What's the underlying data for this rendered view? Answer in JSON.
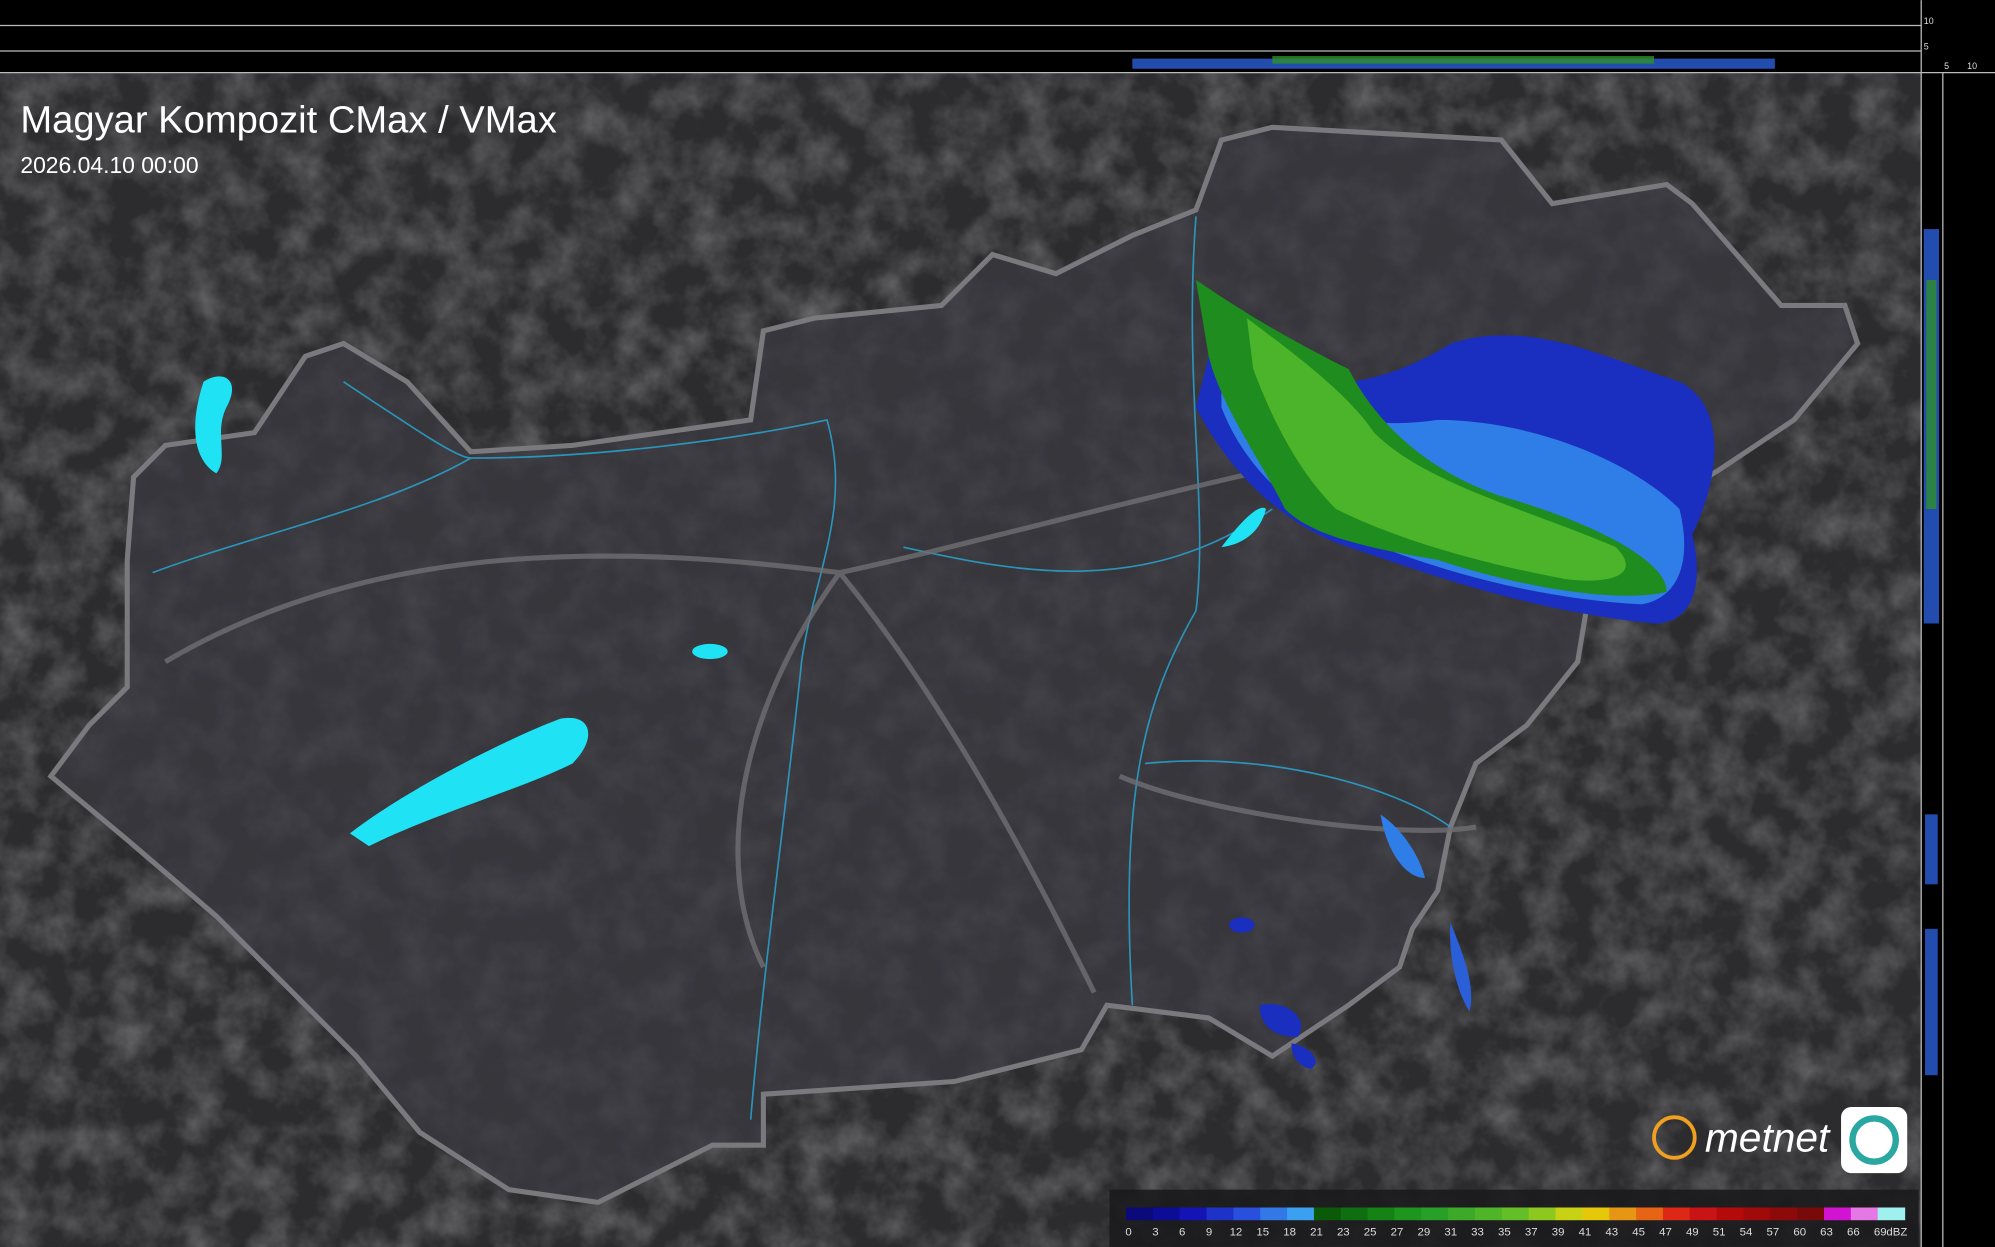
{
  "header": {
    "title": "Magyar Kompozit CMax / VMax",
    "timestamp": "2026.04.10 00:00"
  },
  "legend": {
    "unit": "dBZ",
    "items": [
      {
        "value": 0,
        "color": "#0a0a7a"
      },
      {
        "value": 3,
        "color": "#0c0c96"
      },
      {
        "value": 6,
        "color": "#1414b4"
      },
      {
        "value": 9,
        "color": "#1e32c8"
      },
      {
        "value": 12,
        "color": "#2850dc"
      },
      {
        "value": 15,
        "color": "#3278e6"
      },
      {
        "value": 18,
        "color": "#3ca0f0"
      },
      {
        "value": 21,
        "color": "#0a5a0a"
      },
      {
        "value": 23,
        "color": "#0f6e0f"
      },
      {
        "value": 25,
        "color": "#148214"
      },
      {
        "value": 27,
        "color": "#1e961e"
      },
      {
        "value": 29,
        "color": "#28a028"
      },
      {
        "value": 31,
        "color": "#3caa28"
      },
      {
        "value": 33,
        "color": "#50b428"
      },
      {
        "value": 35,
        "color": "#64be28"
      },
      {
        "value": 37,
        "color": "#8cc81e"
      },
      {
        "value": 39,
        "color": "#c8d214"
      },
      {
        "value": 41,
        "color": "#e6c80a"
      },
      {
        "value": 43,
        "color": "#e69614"
      },
      {
        "value": 45,
        "color": "#e66414"
      },
      {
        "value": 47,
        "color": "#dc2814"
      },
      {
        "value": 49,
        "color": "#c81414"
      },
      {
        "value": 51,
        "color": "#b40a0a"
      },
      {
        "value": 54,
        "color": "#a00a0a"
      },
      {
        "value": 57,
        "color": "#8c0a0a"
      },
      {
        "value": 60,
        "color": "#780a0a"
      },
      {
        "value": 63,
        "color": "#d214d2"
      },
      {
        "value": 66,
        "color": "#e678e6"
      },
      {
        "value": 69,
        "color": "#a0f0f0"
      }
    ]
  },
  "profile_axes": {
    "top": [
      10,
      5
    ],
    "bottom": [
      5,
      10
    ]
  },
  "logo": {
    "text": "metnet"
  }
}
